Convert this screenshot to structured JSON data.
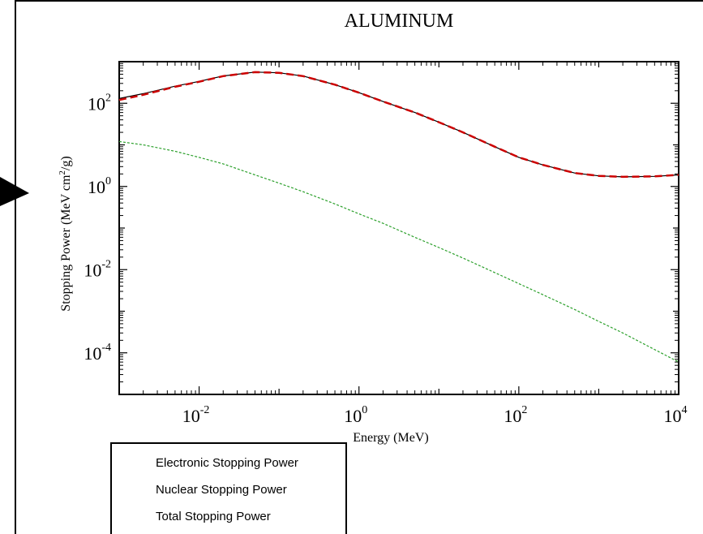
{
  "chart_data": {
    "type": "line",
    "title": "ALUMINUM",
    "xlabel": "Energy (MeV)",
    "ylabel": "Stopping Power (MeV cm²/g)",
    "ylabel_parts": {
      "pre": "Stopping Power (MeV cm",
      "sup": "2",
      "post": "/g)"
    },
    "x_scale": "log",
    "y_scale": "log",
    "xlim": [
      0.001,
      10000
    ],
    "ylim": [
      1e-05,
      1000
    ],
    "x_ticks": [
      {
        "base": "10",
        "exp": "-2",
        "value": 0.01
      },
      {
        "base": "10",
        "exp": "0",
        "value": 1
      },
      {
        "base": "10",
        "exp": "2",
        "value": 100
      },
      {
        "base": "10",
        "exp": "4",
        "value": 10000
      }
    ],
    "y_ticks": [
      {
        "base": "10",
        "exp": "2",
        "value": 100
      },
      {
        "base": "10",
        "exp": "0",
        "value": 1
      },
      {
        "base": "10",
        "exp": "-2",
        "value": 0.01
      },
      {
        "base": "10",
        "exp": "-4",
        "value": 0.0001
      }
    ],
    "grid": false,
    "legend_position": "bottom-left, below plot",
    "series": [
      {
        "name": "Electronic Stopping Power",
        "color": "#cc0000",
        "style": "dashed",
        "x": [
          0.001,
          0.002,
          0.005,
          0.01,
          0.02,
          0.05,
          0.1,
          0.2,
          0.5,
          1,
          2,
          5,
          10,
          20,
          50,
          100,
          200,
          500,
          1000,
          2000,
          5000,
          10000
        ],
        "y": [
          120,
          160,
          250,
          330,
          450,
          560,
          540,
          450,
          280,
          180,
          110,
          60,
          35,
          20,
          9,
          5,
          3.3,
          2.1,
          1.8,
          1.7,
          1.75,
          1.9
        ]
      },
      {
        "name": "Nuclear Stopping Power",
        "color": "#2ca02c",
        "style": "dotted",
        "x": [
          0.001,
          0.002,
          0.005,
          0.01,
          0.02,
          0.05,
          0.1,
          0.2,
          0.5,
          1,
          2,
          5,
          10,
          20,
          50,
          100,
          200,
          500,
          1000,
          2000,
          5000,
          10000
        ],
        "y": [
          12,
          10,
          7,
          5,
          3.5,
          1.9,
          1.2,
          0.75,
          0.38,
          0.22,
          0.13,
          0.06,
          0.034,
          0.019,
          0.0085,
          0.0046,
          0.0025,
          0.0011,
          0.00057,
          0.0003,
          0.00012,
          6e-05
        ]
      },
      {
        "name": "Total Stopping Power",
        "color": "#000000",
        "style": "solid",
        "x": [
          0.001,
          0.002,
          0.005,
          0.01,
          0.02,
          0.05,
          0.1,
          0.2,
          0.5,
          1,
          2,
          5,
          10,
          20,
          50,
          100,
          200,
          500,
          1000,
          2000,
          5000,
          10000
        ],
        "y": [
          130,
          170,
          257,
          335,
          453,
          562,
          541,
          451,
          280,
          180,
          110,
          60,
          35,
          20,
          9,
          5,
          3.3,
          2.1,
          1.8,
          1.7,
          1.75,
          1.9
        ]
      }
    ]
  }
}
